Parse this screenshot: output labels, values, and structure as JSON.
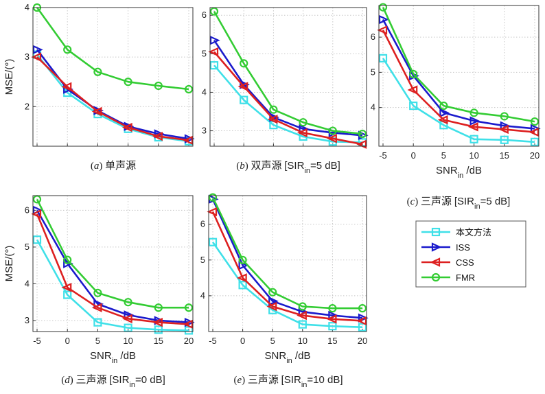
{
  "chart_data": [
    {
      "type": "line",
      "id": "a",
      "caption_letter": "a",
      "caption_paren_open": "(",
      "caption_paren_close": ")",
      "caption_text": " 单声源",
      "caption_sir_open": "",
      "caption_sir_sub": "",
      "caption_sir_rest": "",
      "ylabel": "MSE/(°)",
      "xlabel": "",
      "xlabel_sub": "",
      "xlabel_rest": "",
      "x": [
        -5,
        0,
        5,
        10,
        15,
        20
      ],
      "xlim": [
        -5,
        20
      ],
      "ylim": [
        1.2,
        4.0
      ],
      "xticks_shown": false,
      "xticks": [],
      "yticks": [
        2,
        3,
        4
      ],
      "series": [
        {
          "name": "本文方法",
          "values": [
            3.05,
            2.28,
            1.85,
            1.55,
            1.38,
            1.3
          ]
        },
        {
          "name": "ISS",
          "values": [
            3.15,
            2.35,
            1.92,
            1.6,
            1.45,
            1.35
          ]
        },
        {
          "name": "CSS",
          "values": [
            3.0,
            2.4,
            1.9,
            1.58,
            1.4,
            1.32
          ]
        },
        {
          "name": "FMR",
          "values": [
            4.0,
            3.15,
            2.7,
            2.5,
            2.42,
            2.35
          ]
        }
      ]
    },
    {
      "type": "line",
      "id": "b",
      "caption_letter": "b",
      "caption_paren_open": "(",
      "caption_paren_close": ")",
      "caption_text": " 双声源 ",
      "caption_sir_open": "[SIR",
      "caption_sir_sub": "in",
      "caption_sir_rest": "=5 dB]",
      "ylabel": "",
      "xlabel": "",
      "xlabel_sub": "",
      "xlabel_rest": "",
      "x": [
        -5,
        0,
        5,
        10,
        15,
        20
      ],
      "xlim": [
        -5,
        20
      ],
      "ylim": [
        2.6,
        6.2
      ],
      "xticks_shown": false,
      "xticks": [],
      "yticks": [
        3,
        4,
        5,
        6
      ],
      "series": [
        {
          "name": "本文方法",
          "values": [
            4.7,
            3.8,
            3.15,
            2.85,
            2.72,
            2.7
          ]
        },
        {
          "name": "ISS",
          "values": [
            5.35,
            4.2,
            3.35,
            3.05,
            2.95,
            2.88
          ]
        },
        {
          "name": "CSS",
          "values": [
            5.05,
            4.15,
            3.3,
            2.95,
            2.8,
            2.65
          ]
        },
        {
          "name": "FMR",
          "values": [
            6.1,
            4.75,
            3.55,
            3.22,
            3.0,
            2.92
          ]
        }
      ]
    },
    {
      "type": "line",
      "id": "c",
      "caption_letter": "c",
      "caption_paren_open": "(",
      "caption_paren_close": ")",
      "caption_text": " 三声源 ",
      "caption_sir_open": "[SIR",
      "caption_sir_sub": "in",
      "caption_sir_rest": "=5 dB]",
      "ylabel": "",
      "xlabel": "SNR",
      "xlabel_sub": "in",
      "xlabel_rest": " /dB",
      "x": [
        -5,
        0,
        5,
        10,
        15,
        20
      ],
      "xlim": [
        -5,
        20
      ],
      "ylim": [
        2.9,
        6.9
      ],
      "xticks_shown": true,
      "xticks": [
        -5,
        0,
        5,
        10,
        15,
        20
      ],
      "yticks": [
        4,
        5,
        6
      ],
      "series": [
        {
          "name": "本文方法",
          "values": [
            5.4,
            4.05,
            3.5,
            3.1,
            3.08,
            3.02
          ]
        },
        {
          "name": "ISS",
          "values": [
            6.5,
            4.9,
            3.85,
            3.62,
            3.48,
            3.4
          ]
        },
        {
          "name": "CSS",
          "values": [
            6.2,
            4.5,
            3.65,
            3.45,
            3.38,
            3.3
          ]
        },
        {
          "name": "FMR",
          "values": [
            6.85,
            4.95,
            4.05,
            3.85,
            3.75,
            3.6
          ]
        }
      ]
    },
    {
      "type": "line",
      "id": "d",
      "caption_letter": "d",
      "caption_paren_open": "(",
      "caption_paren_close": ")",
      "caption_text": " 三声源 ",
      "caption_sir_open": "[SIR",
      "caption_sir_sub": "in",
      "caption_sir_rest": "=0 dB]",
      "ylabel": "MSE/(°)",
      "xlabel": "SNR",
      "xlabel_sub": "in",
      "xlabel_rest": " /dB",
      "x": [
        -5,
        0,
        5,
        10,
        15,
        20
      ],
      "xlim": [
        -5,
        20
      ],
      "ylim": [
        2.7,
        6.4
      ],
      "xticks_shown": true,
      "xticks": [
        -5,
        0,
        5,
        10,
        15,
        20
      ],
      "yticks": [
        3,
        4,
        5,
        6
      ],
      "series": [
        {
          "name": "本文方法",
          "values": [
            5.2,
            3.7,
            2.95,
            2.8,
            2.75,
            2.73
          ]
        },
        {
          "name": "ISS",
          "values": [
            6.0,
            4.55,
            3.45,
            3.15,
            3.0,
            2.95
          ]
        },
        {
          "name": "CSS",
          "values": [
            5.9,
            3.9,
            3.35,
            3.05,
            2.95,
            2.9
          ]
        },
        {
          "name": "FMR",
          "values": [
            6.3,
            4.65,
            3.75,
            3.5,
            3.35,
            3.35
          ]
        }
      ]
    },
    {
      "type": "line",
      "id": "e",
      "caption_letter": "e",
      "caption_paren_open": "(",
      "caption_paren_close": ")",
      "caption_text": " 三声源 ",
      "caption_sir_open": "[SIR",
      "caption_sir_sub": "in",
      "caption_sir_rest": "=10 dB]",
      "ylabel": "",
      "xlabel": "SNR",
      "xlabel_sub": "in",
      "xlabel_rest": " /dB",
      "x": [
        -5,
        0,
        5,
        10,
        15,
        20
      ],
      "xlim": [
        -5,
        20
      ],
      "ylim": [
        3.0,
        6.8
      ],
      "xticks_shown": true,
      "xticks": [
        -5,
        0,
        5,
        10,
        15,
        20
      ],
      "yticks": [
        4,
        5,
        6
      ],
      "series": [
        {
          "name": "本文方法",
          "values": [
            5.5,
            4.3,
            3.6,
            3.2,
            3.15,
            3.12
          ]
        },
        {
          "name": "ISS",
          "values": [
            6.7,
            4.85,
            3.85,
            3.55,
            3.45,
            3.38
          ]
        },
        {
          "name": "CSS",
          "values": [
            6.35,
            4.5,
            3.7,
            3.45,
            3.35,
            3.3
          ]
        },
        {
          "name": "FMR",
          "values": [
            6.75,
            5.0,
            4.1,
            3.7,
            3.65,
            3.65
          ]
        }
      ]
    }
  ],
  "legend": {
    "placement": "right",
    "entries": [
      {
        "name": "本文方法",
        "color": "#3fe0e8",
        "marker": "square"
      },
      {
        "name": "ISS",
        "color": "#1a1acc",
        "marker": "triangle-right"
      },
      {
        "name": "CSS",
        "color": "#dd2020",
        "marker": "triangle-left"
      },
      {
        "name": "FMR",
        "color": "#33cc33",
        "marker": "circle"
      }
    ]
  }
}
